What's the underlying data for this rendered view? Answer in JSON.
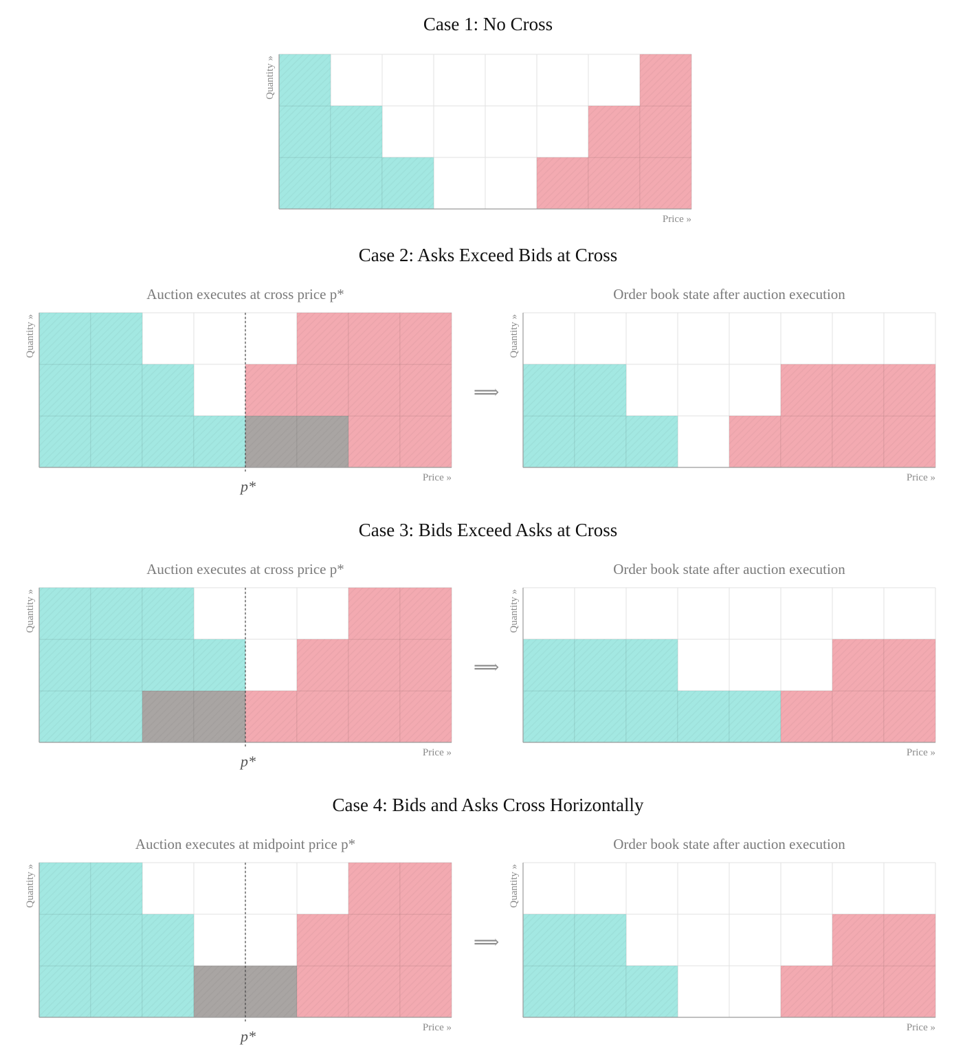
{
  "colors": {
    "bid": "#a3e8e2",
    "ask": "#f3aab1",
    "matched": "#a9a5a3",
    "grid": "#e2e2e2",
    "axis": "#9a9a9a"
  },
  "axis": {
    "x_label": "Price »",
    "y_label": "Quantity »",
    "cross_label": "p*"
  },
  "arrow_symbol": "⟹",
  "cases": [
    {
      "title": "Case 1: No Cross",
      "panels": [
        {
          "subtitle": "",
          "levels": 8,
          "max_qty": 3,
          "bids": [
            3,
            2,
            1,
            0,
            0,
            0,
            0,
            0
          ],
          "asks": [
            0,
            0,
            0,
            0,
            0,
            1,
            2,
            3
          ],
          "matched": [
            0,
            0,
            0,
            0,
            0,
            0,
            0,
            0
          ],
          "cross_at": null
        }
      ]
    },
    {
      "title": "Case 2: Asks Exceed Bids at Cross",
      "panels": [
        {
          "subtitle": "Auction executes at cross price p*",
          "levels": 8,
          "max_qty": 3,
          "bids": [
            3,
            3,
            2,
            1,
            0,
            0,
            0,
            0
          ],
          "asks": [
            0,
            0,
            0,
            0,
            2,
            3,
            3,
            3
          ],
          "matched": [
            0,
            0,
            0,
            0,
            1,
            1,
            0,
            0
          ],
          "cross_at": 4
        },
        {
          "subtitle": "Order book state after auction execution",
          "levels": 8,
          "max_qty": 3,
          "bids": [
            2,
            2,
            1,
            0,
            0,
            0,
            0,
            0
          ],
          "asks": [
            0,
            0,
            0,
            0,
            1,
            2,
            2,
            2
          ],
          "matched": [
            0,
            0,
            0,
            0,
            0,
            0,
            0,
            0
          ],
          "cross_at": null
        }
      ]
    },
    {
      "title": "Case 3: Bids Exceed Asks at Cross",
      "panels": [
        {
          "subtitle": "Auction executes at cross price p*",
          "levels": 8,
          "max_qty": 3,
          "bids": [
            3,
            3,
            3,
            2,
            0,
            0,
            0,
            0
          ],
          "asks": [
            0,
            0,
            0,
            0,
            1,
            2,
            3,
            3
          ],
          "matched": [
            0,
            0,
            1,
            1,
            0,
            0,
            0,
            0
          ],
          "cross_at": 4
        },
        {
          "subtitle": "Order book state after auction execution",
          "levels": 8,
          "max_qty": 3,
          "bids": [
            2,
            2,
            2,
            1,
            1,
            0,
            0,
            0
          ],
          "asks": [
            0,
            0,
            0,
            0,
            0,
            1,
            2,
            2
          ],
          "matched": [
            0,
            0,
            0,
            0,
            0,
            0,
            0,
            0
          ],
          "cross_at": null
        }
      ]
    },
    {
      "title": "Case 4: Bids and Asks Cross Horizontally",
      "panels": [
        {
          "subtitle": "Auction executes at midpoint price p*",
          "levels": 8,
          "max_qty": 3,
          "bids": [
            3,
            3,
            2,
            0,
            0,
            0,
            0,
            0
          ],
          "asks": [
            0,
            0,
            0,
            0,
            0,
            2,
            3,
            3
          ],
          "matched": [
            0,
            0,
            0,
            1,
            1,
            0,
            0,
            0
          ],
          "cross_at": 4
        },
        {
          "subtitle": "Order book state after auction execution",
          "levels": 8,
          "max_qty": 3,
          "bids": [
            2,
            2,
            1,
            0,
            0,
            0,
            0,
            0
          ],
          "asks": [
            0,
            0,
            0,
            0,
            0,
            1,
            2,
            2
          ],
          "matched": [
            0,
            0,
            0,
            0,
            0,
            0,
            0,
            0
          ],
          "cross_at": null
        }
      ]
    }
  ]
}
